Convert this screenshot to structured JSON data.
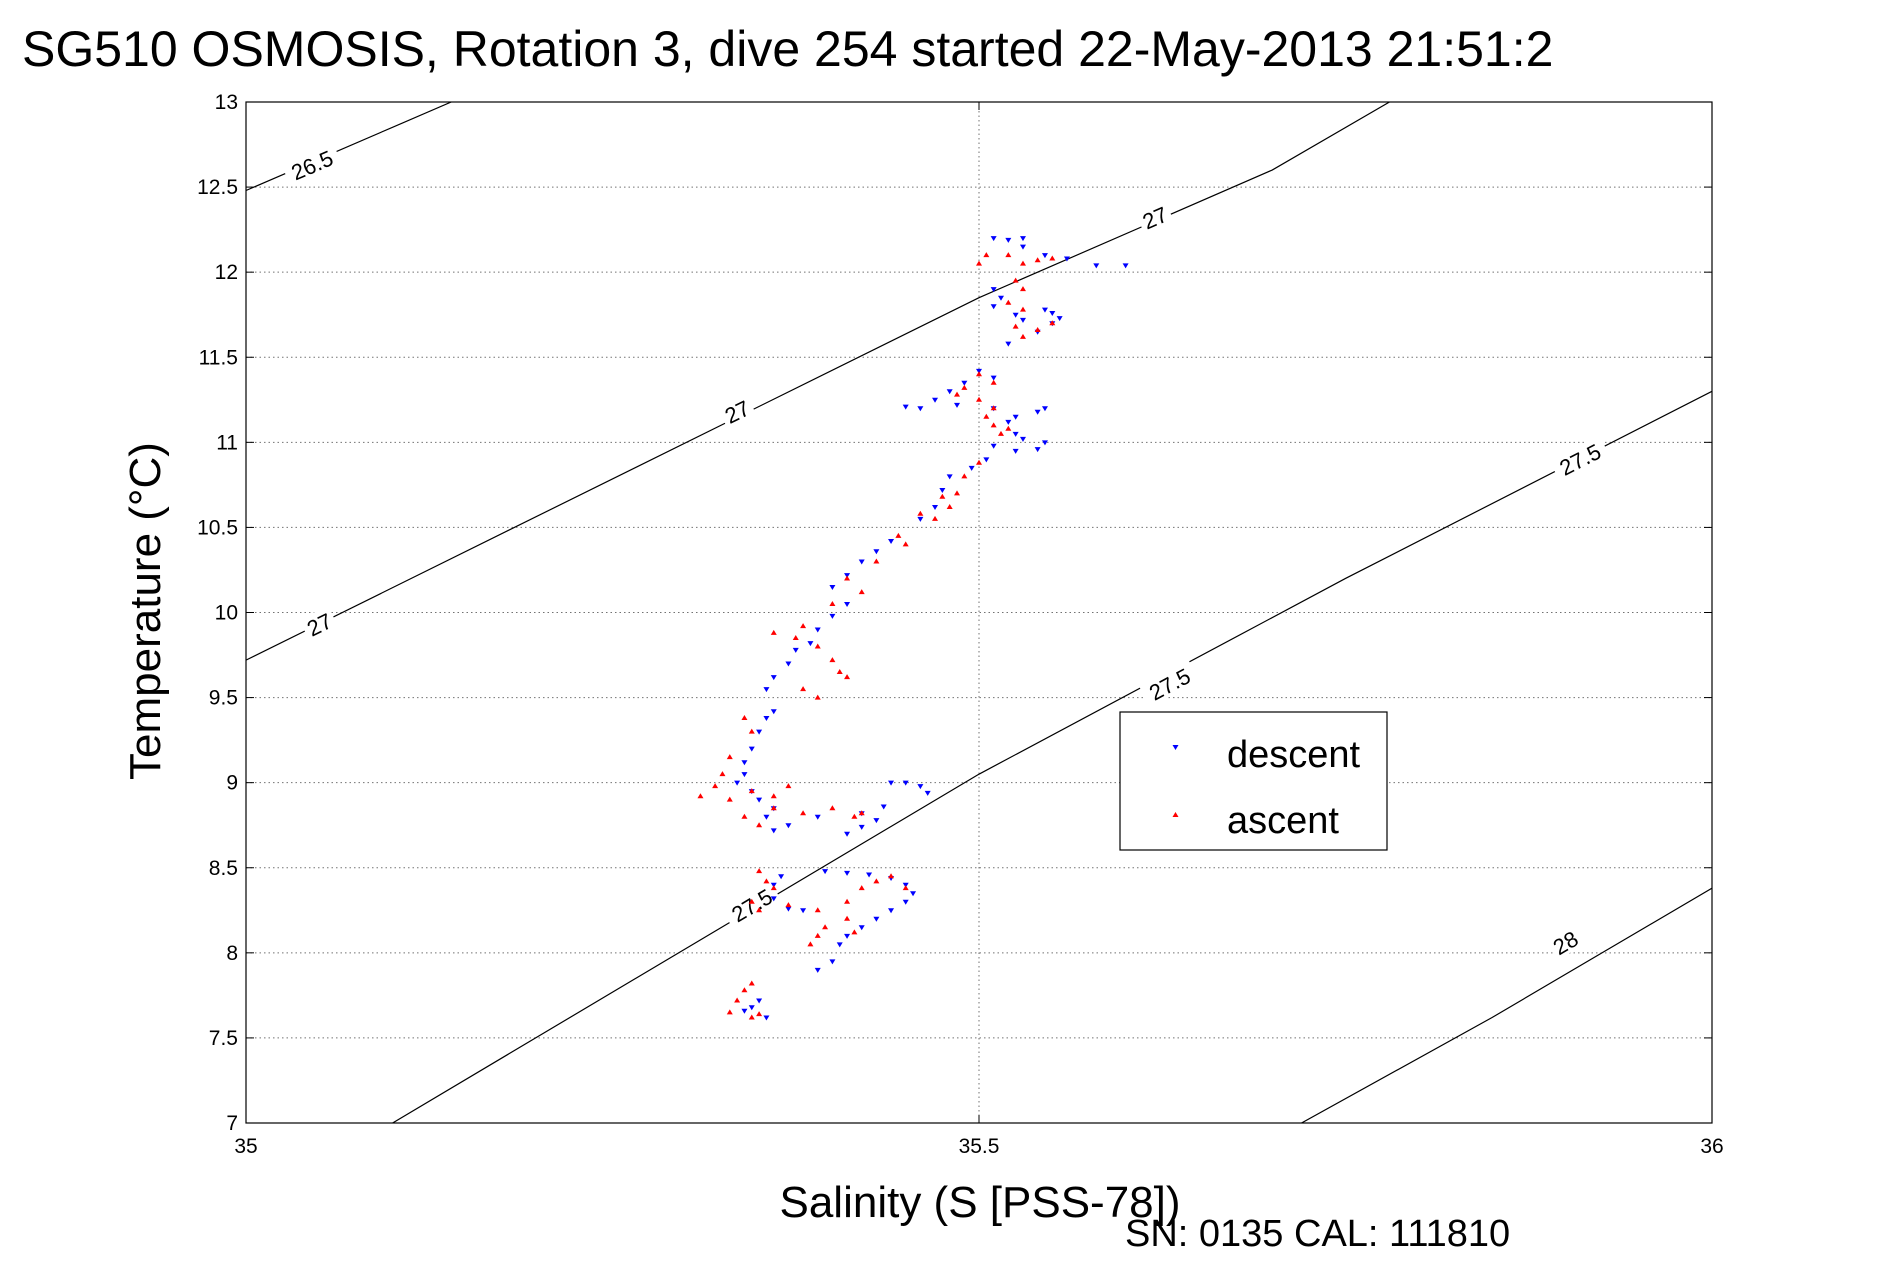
{
  "chart_data": {
    "type": "scatter",
    "title": "SG510 OSMOSIS, Rotation 3, dive 254 started 22-May-2013 21:51:2",
    "xlabel": "Salinity (S [PSS-78])",
    "ylabel": "Temperature (°C)",
    "xlim": [
      35,
      36
    ],
    "ylim": [
      7,
      13
    ],
    "x_ticks": [
      "35",
      "35.5",
      "36"
    ],
    "y_ticks": [
      "7",
      "7.5",
      "8",
      "8.5",
      "9",
      "9.5",
      "10",
      "10.5",
      "11",
      "11.5",
      "12",
      "12.5",
      "13"
    ],
    "x_tick_values": [
      35,
      35.5,
      36
    ],
    "y_tick_values": [
      7,
      7.5,
      8,
      8.5,
      9,
      9.5,
      10,
      10.5,
      11,
      11.5,
      12,
      12.5,
      13
    ],
    "grid": true,
    "legend_position": "center-right",
    "footer": "SN: 0135  CAL: 111810",
    "contours": [
      {
        "label": "26.5",
        "points": [
          [
            35.0,
            12.48
          ],
          [
            35.14,
            13.0
          ]
        ],
        "label_at": [
          [
            35.045,
            12.63
          ]
        ]
      },
      {
        "label": "27",
        "points": [
          [
            35.0,
            9.72
          ],
          [
            35.5,
            11.85
          ],
          [
            35.7,
            12.6
          ],
          [
            35.78,
            13.0
          ]
        ],
        "label_at": [
          [
            35.05,
            9.93
          ],
          [
            35.335,
            11.18
          ],
          [
            35.62,
            12.32
          ]
        ]
      },
      {
        "label": "27.5",
        "points": [
          [
            35.1,
            7.0
          ],
          [
            35.5,
            9.05
          ],
          [
            35.75,
            10.2
          ],
          [
            36.0,
            11.3
          ]
        ],
        "label_at": [
          [
            35.345,
            8.28
          ],
          [
            35.63,
            9.58
          ],
          [
            35.91,
            10.9
          ]
        ]
      },
      {
        "label": "28",
        "points": [
          [
            35.72,
            7.0
          ],
          [
            35.85,
            7.62
          ],
          [
            36.0,
            8.38
          ]
        ],
        "label_at": [
          [
            35.9,
            8.06
          ]
        ]
      }
    ],
    "series": [
      {
        "name": "descent",
        "color": "#0000ff",
        "marker": "triangle-down",
        "points": [
          [
            35.51,
            12.2
          ],
          [
            35.52,
            12.19
          ],
          [
            35.53,
            12.2
          ],
          [
            35.53,
            12.15
          ],
          [
            35.545,
            12.1
          ],
          [
            35.56,
            12.08
          ],
          [
            35.58,
            12.04
          ],
          [
            35.6,
            12.04
          ],
          [
            35.51,
            11.9
          ],
          [
            35.515,
            11.85
          ],
          [
            35.51,
            11.8
          ],
          [
            35.525,
            11.75
          ],
          [
            35.53,
            11.72
          ],
          [
            35.545,
            11.78
          ],
          [
            35.55,
            11.76
          ],
          [
            35.555,
            11.73
          ],
          [
            35.55,
            11.7
          ],
          [
            35.54,
            11.65
          ],
          [
            35.52,
            11.58
          ],
          [
            35.5,
            11.42
          ],
          [
            35.51,
            11.38
          ],
          [
            35.49,
            11.35
          ],
          [
            35.48,
            11.3
          ],
          [
            35.47,
            11.25
          ],
          [
            35.46,
            11.2
          ],
          [
            35.45,
            11.21
          ],
          [
            35.485,
            11.22
          ],
          [
            35.51,
            11.2
          ],
          [
            35.525,
            11.15
          ],
          [
            35.54,
            11.18
          ],
          [
            35.545,
            11.2
          ],
          [
            35.52,
            11.12
          ],
          [
            35.525,
            11.05
          ],
          [
            35.53,
            11.02
          ],
          [
            35.545,
            11.0
          ],
          [
            35.54,
            10.96
          ],
          [
            35.525,
            10.95
          ],
          [
            35.51,
            10.98
          ],
          [
            35.505,
            10.9
          ],
          [
            35.495,
            10.85
          ],
          [
            35.48,
            10.8
          ],
          [
            35.475,
            10.72
          ],
          [
            35.47,
            10.62
          ],
          [
            35.46,
            10.55
          ],
          [
            35.44,
            10.42
          ],
          [
            35.43,
            10.36
          ],
          [
            35.42,
            10.3
          ],
          [
            35.41,
            10.22
          ],
          [
            35.4,
            10.15
          ],
          [
            35.41,
            10.05
          ],
          [
            35.4,
            9.98
          ],
          [
            35.39,
            9.9
          ],
          [
            35.385,
            9.82
          ],
          [
            35.375,
            9.78
          ],
          [
            35.37,
            9.7
          ],
          [
            35.36,
            9.62
          ],
          [
            35.355,
            9.55
          ],
          [
            35.36,
            9.42
          ],
          [
            35.355,
            9.38
          ],
          [
            35.35,
            9.3
          ],
          [
            35.345,
            9.2
          ],
          [
            35.34,
            9.12
          ],
          [
            35.34,
            9.05
          ],
          [
            35.335,
            9.0
          ],
          [
            35.345,
            8.95
          ],
          [
            35.35,
            8.9
          ],
          [
            35.36,
            8.85
          ],
          [
            35.355,
            8.8
          ],
          [
            35.36,
            8.72
          ],
          [
            35.37,
            8.75
          ],
          [
            35.39,
            8.8
          ],
          [
            35.42,
            8.82
          ],
          [
            35.435,
            8.86
          ],
          [
            35.44,
            9.0
          ],
          [
            35.45,
            9.0
          ],
          [
            35.46,
            8.98
          ],
          [
            35.465,
            8.94
          ],
          [
            35.43,
            8.78
          ],
          [
            35.42,
            8.74
          ],
          [
            35.41,
            8.7
          ],
          [
            35.395,
            8.48
          ],
          [
            35.41,
            8.47
          ],
          [
            35.425,
            8.46
          ],
          [
            35.44,
            8.44
          ],
          [
            35.45,
            8.4
          ],
          [
            35.455,
            8.35
          ],
          [
            35.45,
            8.3
          ],
          [
            35.44,
            8.25
          ],
          [
            35.43,
            8.2
          ],
          [
            35.42,
            8.15
          ],
          [
            35.41,
            8.1
          ],
          [
            35.405,
            8.05
          ],
          [
            35.4,
            7.95
          ],
          [
            35.36,
            8.32
          ],
          [
            35.37,
            8.26
          ],
          [
            35.38,
            8.25
          ],
          [
            35.36,
            8.4
          ],
          [
            35.365,
            8.45
          ],
          [
            35.345,
            7.68
          ],
          [
            35.35,
            7.72
          ],
          [
            35.355,
            7.62
          ],
          [
            35.34,
            7.66
          ],
          [
            35.39,
            7.9
          ]
        ]
      },
      {
        "name": "ascent",
        "color": "#ff0000",
        "marker": "triangle-up",
        "points": [
          [
            35.5,
            12.05
          ],
          [
            35.505,
            12.1
          ],
          [
            35.52,
            12.1
          ],
          [
            35.53,
            12.05
          ],
          [
            35.54,
            12.07
          ],
          [
            35.55,
            12.08
          ],
          [
            35.525,
            11.95
          ],
          [
            35.53,
            11.9
          ],
          [
            35.52,
            11.82
          ],
          [
            35.53,
            11.78
          ],
          [
            35.525,
            11.68
          ],
          [
            35.53,
            11.62
          ],
          [
            35.54,
            11.66
          ],
          [
            35.55,
            11.7
          ],
          [
            35.51,
            11.35
          ],
          [
            35.5,
            11.4
          ],
          [
            35.49,
            11.32
          ],
          [
            35.485,
            11.28
          ],
          [
            35.5,
            11.25
          ],
          [
            35.51,
            11.2
          ],
          [
            35.505,
            11.15
          ],
          [
            35.51,
            11.1
          ],
          [
            35.515,
            11.05
          ],
          [
            35.52,
            11.08
          ],
          [
            35.5,
            10.88
          ],
          [
            35.49,
            10.8
          ],
          [
            35.485,
            10.7
          ],
          [
            35.48,
            10.62
          ],
          [
            35.47,
            10.55
          ],
          [
            35.475,
            10.68
          ],
          [
            35.46,
            10.58
          ],
          [
            35.445,
            10.45
          ],
          [
            35.45,
            10.4
          ],
          [
            35.43,
            10.3
          ],
          [
            35.41,
            10.2
          ],
          [
            35.42,
            10.12
          ],
          [
            35.4,
            10.05
          ],
          [
            35.38,
            9.92
          ],
          [
            35.375,
            9.85
          ],
          [
            35.36,
            9.88
          ],
          [
            35.39,
            9.8
          ],
          [
            35.4,
            9.72
          ],
          [
            35.405,
            9.65
          ],
          [
            35.41,
            9.62
          ],
          [
            35.39,
            9.5
          ],
          [
            35.38,
            9.55
          ],
          [
            35.34,
            9.38
          ],
          [
            35.345,
            9.3
          ],
          [
            35.33,
            9.15
          ],
          [
            35.325,
            9.05
          ],
          [
            35.32,
            8.98
          ],
          [
            35.31,
            8.92
          ],
          [
            35.33,
            8.9
          ],
          [
            35.345,
            8.95
          ],
          [
            35.36,
            8.92
          ],
          [
            35.37,
            8.98
          ],
          [
            35.36,
            8.85
          ],
          [
            35.34,
            8.8
          ],
          [
            35.35,
            8.75
          ],
          [
            35.38,
            8.82
          ],
          [
            35.4,
            8.85
          ],
          [
            35.415,
            8.8
          ],
          [
            35.42,
            8.82
          ],
          [
            35.35,
            8.48
          ],
          [
            35.355,
            8.42
          ],
          [
            35.36,
            8.38
          ],
          [
            35.345,
            8.3
          ],
          [
            35.35,
            8.25
          ],
          [
            35.37,
            8.28
          ],
          [
            35.39,
            8.25
          ],
          [
            35.41,
            8.3
          ],
          [
            35.42,
            8.38
          ],
          [
            35.43,
            8.42
          ],
          [
            35.44,
            8.45
          ],
          [
            35.45,
            8.38
          ],
          [
            35.41,
            8.2
          ],
          [
            35.395,
            8.15
          ],
          [
            35.39,
            8.1
          ],
          [
            35.385,
            8.05
          ],
          [
            35.415,
            8.12
          ],
          [
            35.34,
            7.78
          ],
          [
            35.345,
            7.82
          ],
          [
            35.335,
            7.72
          ],
          [
            35.33,
            7.65
          ],
          [
            35.345,
            7.62
          ],
          [
            35.35,
            7.64
          ]
        ]
      }
    ]
  }
}
